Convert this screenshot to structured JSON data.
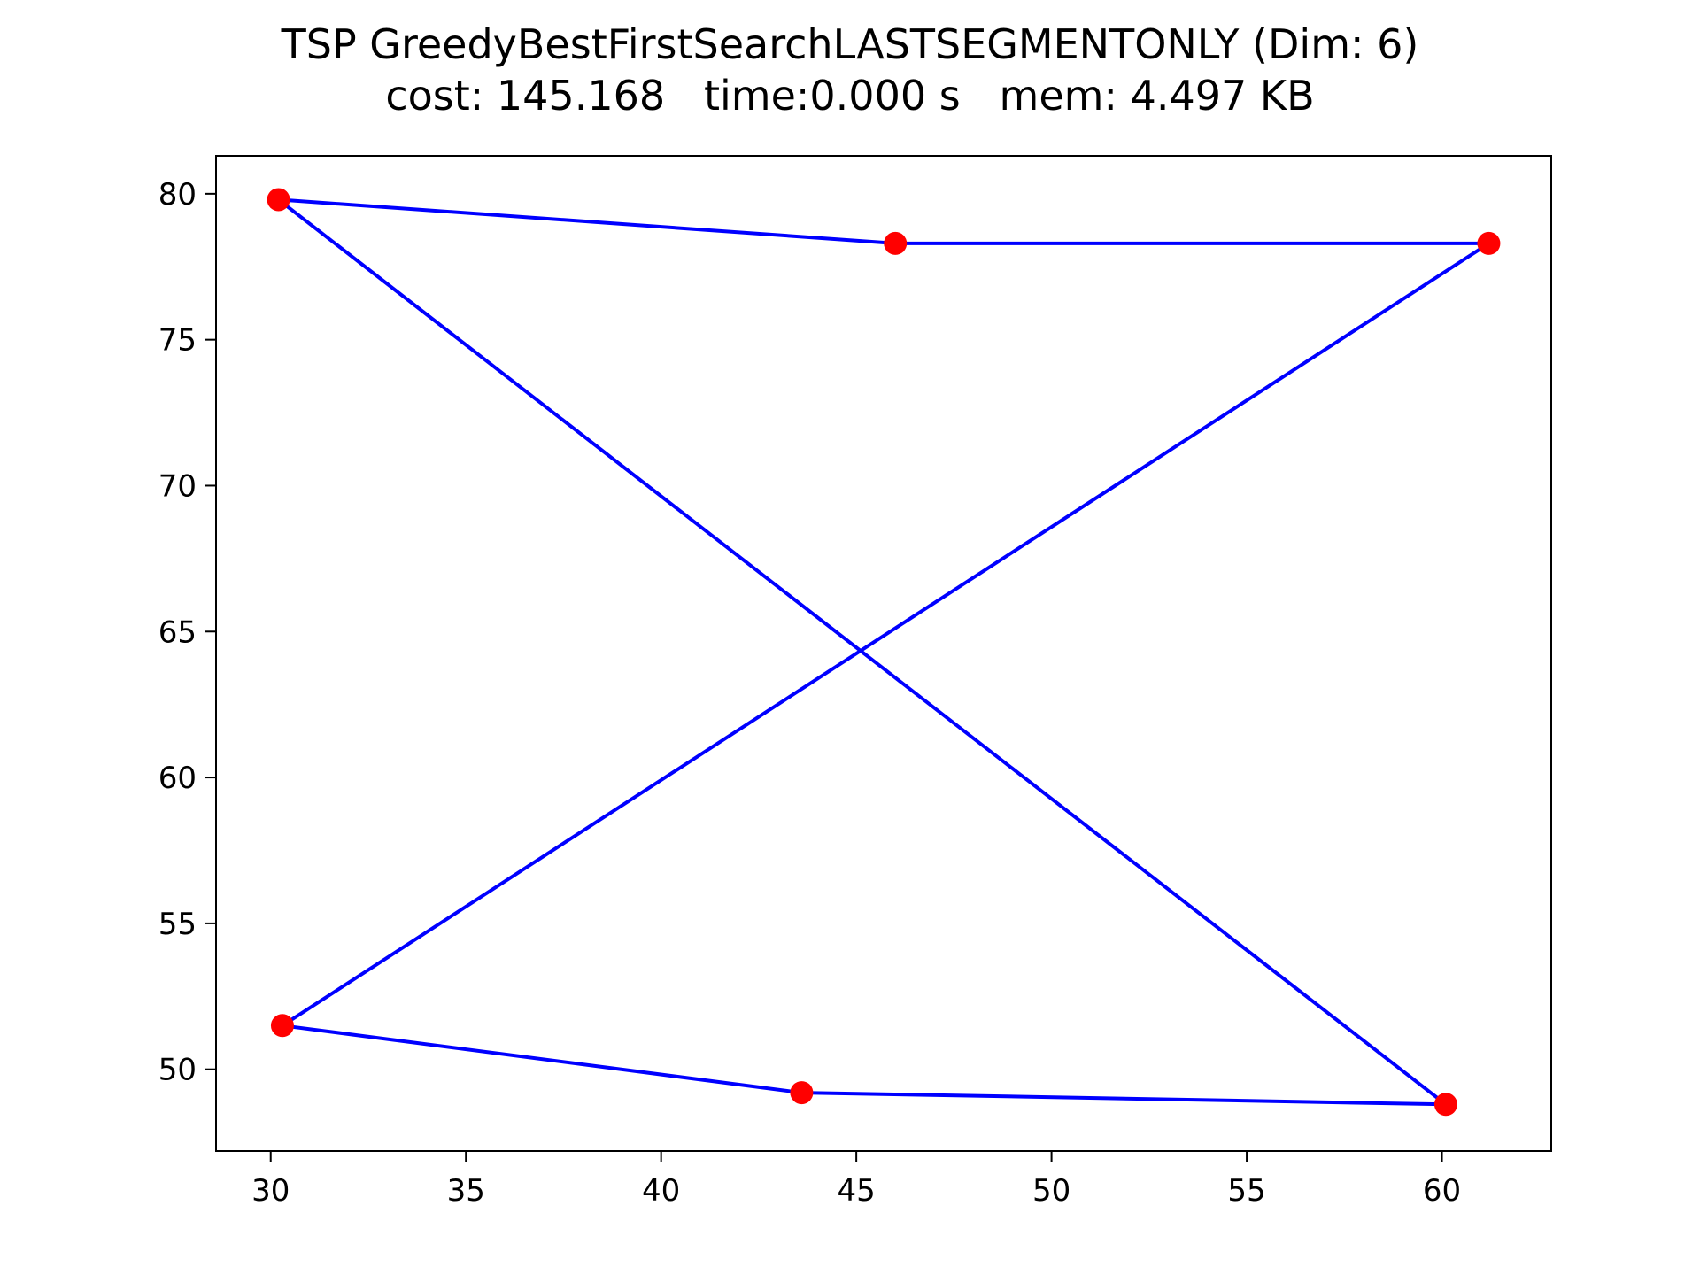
{
  "chart_data": {
    "type": "line",
    "title": "TSP GreedyBestFirstSearchLASTSEGMENTONLY (Dim: 6)",
    "subtitle": "cost: 145.168   time:0.000 s   mem: 4.497 KB",
    "xlim": [
      28.6,
      62.8
    ],
    "ylim": [
      47.2,
      81.3
    ],
    "xticks": [
      30,
      35,
      40,
      45,
      50,
      55,
      60
    ],
    "yticks": [
      50,
      55,
      60,
      65,
      70,
      75,
      80
    ],
    "grid": false,
    "legend": "none",
    "colors": {
      "route": "#0000ff",
      "city": "#ff0000",
      "axes": "#000000"
    },
    "cities": [
      {
        "x": 30.2,
        "y": 79.8
      },
      {
        "x": 46.0,
        "y": 78.3
      },
      {
        "x": 61.2,
        "y": 78.3
      },
      {
        "x": 30.3,
        "y": 51.5
      },
      {
        "x": 43.6,
        "y": 49.2
      },
      {
        "x": 60.1,
        "y": 48.8
      }
    ],
    "route": [
      {
        "x": 30.2,
        "y": 79.8
      },
      {
        "x": 46.0,
        "y": 78.3
      },
      {
        "x": 61.2,
        "y": 78.3
      },
      {
        "x": 30.3,
        "y": 51.5
      },
      {
        "x": 43.6,
        "y": 49.2
      },
      {
        "x": 60.1,
        "y": 48.8
      },
      {
        "x": 30.2,
        "y": 79.8
      }
    ]
  }
}
